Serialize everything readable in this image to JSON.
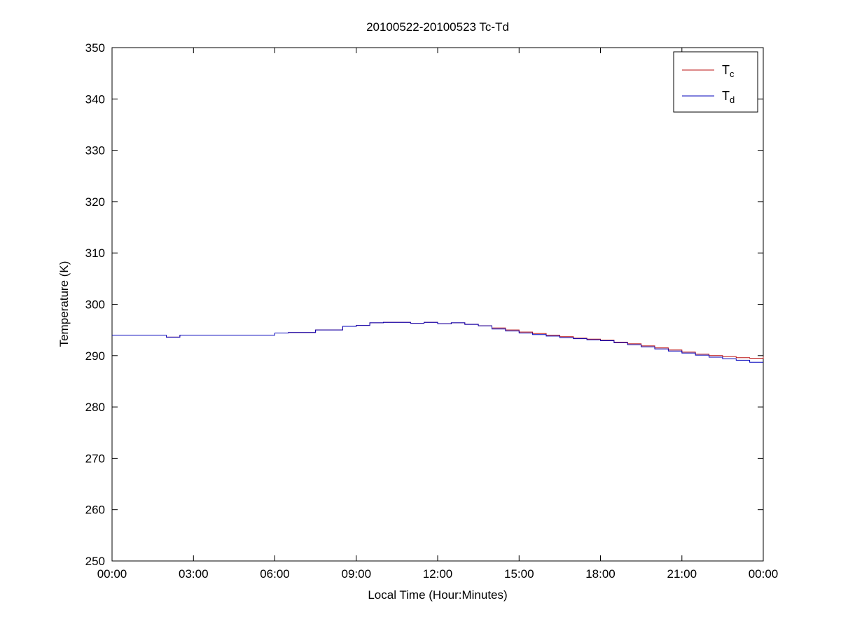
{
  "page": {
    "background": "#ffffff"
  },
  "chart_data": {
    "type": "line",
    "title": "20100522-20100523 Tc-Td",
    "xlabel": "Local Time (Hour:Minutes)",
    "ylabel": "Temperature (K)",
    "xlim": [
      0,
      24
    ],
    "ylim": [
      250,
      350
    ],
    "grid": false,
    "interpolation": "step-after",
    "legend_position": "top-right",
    "x_ticks": [
      0,
      3,
      6,
      9,
      12,
      15,
      18,
      21,
      24
    ],
    "x_tick_labels": [
      "00:00",
      "03:00",
      "06:00",
      "09:00",
      "12:00",
      "15:00",
      "18:00",
      "21:00",
      "00:00"
    ],
    "y_ticks": [
      250,
      260,
      270,
      280,
      290,
      300,
      310,
      320,
      330,
      340,
      350
    ],
    "y_tick_labels": [
      "250",
      "260",
      "270",
      "280",
      "290",
      "300",
      "310",
      "320",
      "330",
      "340",
      "350"
    ],
    "x": [
      0,
      0.5,
      1,
      1.5,
      2,
      2.5,
      3,
      3.5,
      4,
      4.5,
      5,
      5.5,
      6,
      6.5,
      7,
      7.5,
      8,
      8.5,
      9,
      9.5,
      10,
      10.5,
      11,
      11.5,
      12,
      12.5,
      13,
      13.5,
      14,
      14.5,
      15,
      15.5,
      16,
      16.5,
      17,
      17.5,
      18,
      18.5,
      19,
      19.5,
      20,
      20.5,
      21,
      21.5,
      22,
      22.5,
      23,
      23.5,
      24
    ],
    "series": [
      {
        "name": "Tc",
        "label_main": "T",
        "label_sub": "c",
        "color": "#bb1111",
        "values": [
          294,
          294,
          294,
          294,
          293.6,
          294,
          294,
          294,
          294,
          294,
          294,
          294,
          294.4,
          294.5,
          294.5,
          295,
          295,
          295.7,
          295.9,
          296.4,
          296.5,
          296.5,
          296.3,
          296.5,
          296.2,
          296.4,
          296.1,
          295.8,
          295.4,
          295,
          294.6,
          294.3,
          294,
          293.7,
          293.4,
          293.2,
          293,
          292.6,
          292.3,
          291.9,
          291.5,
          291.1,
          290.7,
          290.3,
          290,
          289.8,
          289.6,
          289.5,
          289.8
        ]
      },
      {
        "name": "Td",
        "label_main": "T",
        "label_sub": "d",
        "color": "#0000bb",
        "values": [
          294,
          294,
          294,
          294,
          293.6,
          294,
          294,
          294,
          294,
          294,
          294,
          294,
          294.4,
          294.5,
          294.5,
          295,
          295,
          295.7,
          295.9,
          296.4,
          296.5,
          296.5,
          296.3,
          296.5,
          296.2,
          296.4,
          296.1,
          295.8,
          295.2,
          294.8,
          294.4,
          294.1,
          293.8,
          293.5,
          293.3,
          293.1,
          292.9,
          292.5,
          292.1,
          291.7,
          291.3,
          290.9,
          290.5,
          290.1,
          289.7,
          289.4,
          289.1,
          288.7,
          288.7
        ]
      }
    ]
  }
}
